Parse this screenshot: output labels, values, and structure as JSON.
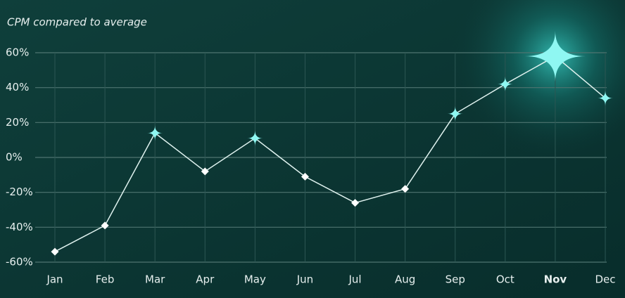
{
  "chart_data": {
    "type": "line",
    "title": "CPM compared to average",
    "categories": [
      "Jan",
      "Feb",
      "Mar",
      "Apr",
      "May",
      "Jun",
      "Jul",
      "Aug",
      "Sep",
      "Oct",
      "Nov",
      "Dec"
    ],
    "values": [
      -54,
      -39,
      14,
      -8,
      11,
      -11,
      -26,
      -18,
      25,
      42,
      58,
      34
    ],
    "color": "#dff2ef",
    "marker_color": "#8ff7f2",
    "ylim": [
      -60,
      60
    ],
    "yticks": [
      {
        "value": -60,
        "label": "-60%"
      },
      {
        "value": -40,
        "label": "-40%"
      },
      {
        "value": -20,
        "label": "-20%"
      },
      {
        "value": 0,
        "label": "0%"
      },
      {
        "value": 20,
        "label": "20%"
      },
      {
        "value": 40,
        "label": "40%"
      },
      {
        "value": 60,
        "label": "60%"
      }
    ],
    "grid": true
  }
}
